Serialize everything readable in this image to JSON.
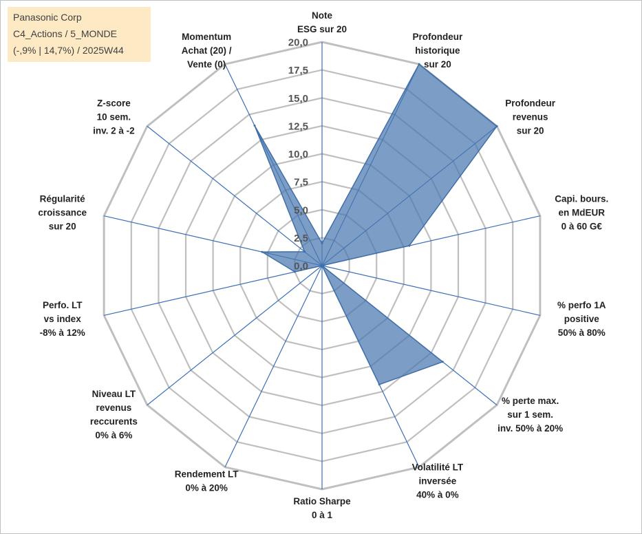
{
  "info": {
    "line1": "Panasonic Corp",
    "line2": "C4_Actions / 5_MONDE",
    "line3": "(-,9% | 14,7%) / 2025W44"
  },
  "colors": {
    "grid": "#bfbfbf",
    "spoke": "#3a6fb7",
    "fill": "#4a78b0",
    "fill_opacity": "0.72",
    "outline": "#3f6ea8",
    "info_bg": "#fde9c4"
  },
  "chart_data": {
    "type": "radar",
    "rmin": 0,
    "rmax": 20,
    "ticks": [
      "0,0",
      "2,5",
      "5,0",
      "7,5",
      "10,0",
      "12,5",
      "15,0",
      "17,5",
      "20,0"
    ],
    "categories": [
      {
        "lines": [
          "Note",
          "ESG sur 20"
        ],
        "value": 2.0
      },
      {
        "lines": [
          "Profondeur",
          "historique",
          "sur 20"
        ],
        "value": 20.0
      },
      {
        "lines": [
          "Profondeur",
          "revenus",
          "sur 20"
        ],
        "value": 20.0
      },
      {
        "lines": [
          "Capi. bours.",
          "en MdEUR",
          "0 à 60 G€"
        ],
        "value": 8.0
      },
      {
        "lines": [
          "% perfo 1A",
          "positive",
          "50% à 80%"
        ],
        "value": 0.0
      },
      {
        "lines": [
          "% perte max.",
          "sur 1 sem.",
          "inv. 50% à 20%"
        ],
        "value": 13.8
      },
      {
        "lines": [
          "Volatilité LT",
          "inversée",
          "40% à 0%"
        ],
        "value": 11.8
      },
      {
        "lines": [
          "Ratio Sharpe",
          "0 à 1"
        ],
        "value": 0.0
      },
      {
        "lines": [
          "Rendement LT",
          "0% à 20%"
        ],
        "value": 0.0
      },
      {
        "lines": [
          "Niveau LT",
          "revenus",
          "reccurents",
          "0% à 6%"
        ],
        "value": 0.0
      },
      {
        "lines": [
          "Perfo. LT",
          "vs index",
          "-8% à 12%"
        ],
        "value": 2.5
      },
      {
        "lines": [
          "Régularité",
          "croissance",
          "sur 20"
        ],
        "value": 5.5
      },
      {
        "lines": [
          "Z-score",
          "10 sem.",
          "inv. 2 à -2"
        ],
        "value": 2.0
      },
      {
        "lines": [
          "Momentum",
          "Achat (20) /",
          "Vente (0)"
        ],
        "value": 13.9
      }
    ]
  }
}
